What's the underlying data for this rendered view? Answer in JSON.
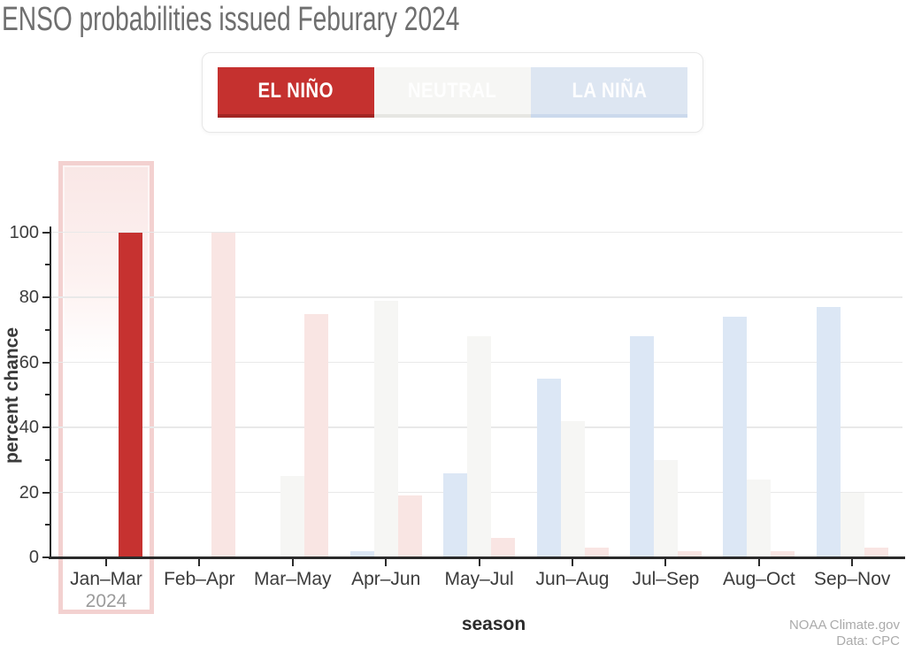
{
  "title": "ENSO probabilities issued Feburary 2024",
  "legend": {
    "buttons": [
      {
        "id": "el-nino",
        "label": "EL NIÑO",
        "active": true,
        "bg": "#c5312f",
        "edge": "#a22523",
        "text": "#ffffff"
      },
      {
        "id": "neutral",
        "label": "NEUTRAL",
        "active": false,
        "bg": "#f6f6f4",
        "edge": "#e6e6e2",
        "text": "#fefefe"
      },
      {
        "id": "la-nina",
        "label": "LA NIÑA",
        "active": false,
        "bg": "#dde6f2",
        "edge": "#cbd9ec",
        "text": "#fdfdfe"
      }
    ]
  },
  "chart_data": {
    "type": "bar",
    "title": "ENSO probabilities issued Feburary 2024",
    "xlabel": "season",
    "ylabel": "percent chance",
    "ylim": [
      0,
      122
    ],
    "yticks_major": [
      0,
      20,
      40,
      60,
      80,
      100
    ],
    "yticks_minor": [
      10,
      30,
      50,
      70,
      90
    ],
    "grid": true,
    "legend_position": "top",
    "categories": [
      "Jan–Mar",
      "Feb–Apr",
      "Mar–May",
      "Apr–Jun",
      "May–Jul",
      "Jun–Aug",
      "Jul–Sep",
      "Aug–Oct",
      "Sep–Nov"
    ],
    "first_category_sublabel": "2024",
    "highlighted_category_index": 0,
    "series": [
      {
        "name": "La Niña",
        "color": "#dce7f5",
        "values": [
          0,
          0,
          0,
          2,
          26,
          55,
          68,
          74,
          77
        ]
      },
      {
        "name": "Neutral",
        "color": "#f6f6f4",
        "values": [
          0,
          0,
          25,
          79,
          68,
          42,
          30,
          24,
          20
        ]
      },
      {
        "name": "El Niño",
        "color": "#f9e5e3",
        "highlight_color": "#c63230",
        "values": [
          100,
          100,
          75,
          19,
          6,
          3,
          2,
          2,
          3
        ]
      }
    ]
  },
  "highlight_box": {
    "border": "#f3d1d0",
    "fill_top": "#f9e7e6"
  },
  "attribution": {
    "line1": "NOAA Climate.gov",
    "line2": "Data: CPC"
  }
}
